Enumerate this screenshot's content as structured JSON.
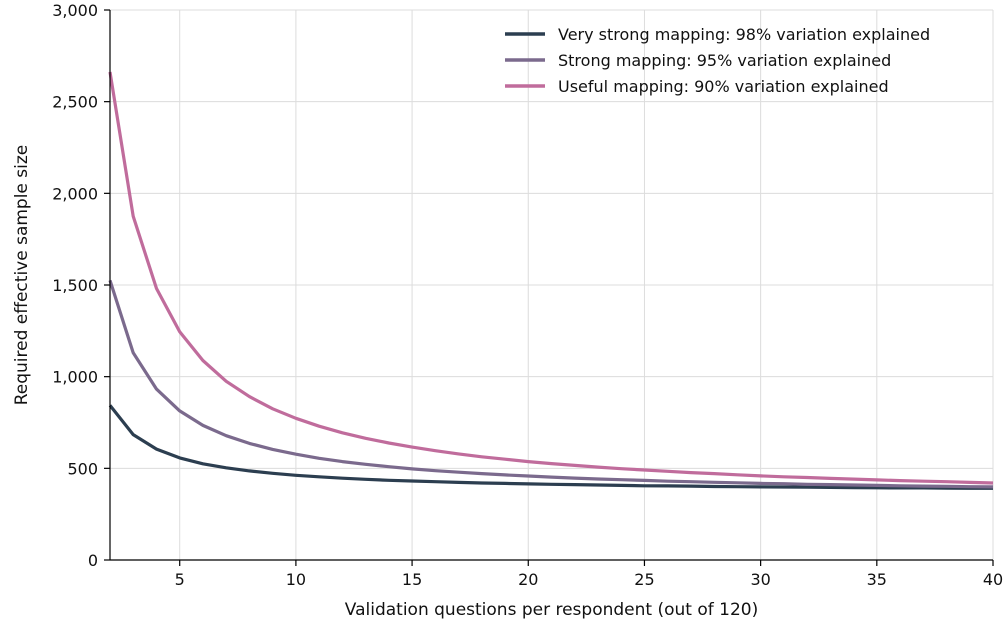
{
  "chart_data": {
    "type": "line",
    "title": "",
    "xlabel": "Validation questions per respondent (out of 120)",
    "ylabel": "Required effective sample size",
    "xlim": [
      2,
      40
    ],
    "ylim": [
      0,
      3000
    ],
    "xticks": [
      5,
      10,
      15,
      20,
      25,
      30,
      35,
      40
    ],
    "yticks": [
      0,
      500,
      1000,
      1500,
      2000,
      2500,
      3000
    ],
    "xtick_labels": [
      "5",
      "10",
      "15",
      "20",
      "25",
      "30",
      "35",
      "40"
    ],
    "ytick_labels": [
      "0",
      "500",
      "1,000",
      "1,500",
      "2,000",
      "2,500",
      "3,000"
    ],
    "grid": true,
    "legend_position": "top-right",
    "x": [
      2,
      3,
      4,
      5,
      6,
      7,
      8,
      9,
      10,
      11,
      12,
      13,
      14,
      15,
      16,
      17,
      18,
      19,
      20,
      21,
      22,
      23,
      24,
      25,
      26,
      27,
      28,
      29,
      30,
      31,
      32,
      33,
      34,
      35,
      36,
      37,
      38,
      39,
      40
    ],
    "series": [
      {
        "name": "Very strong mapping: 98% variation explained",
        "color": "#2c3e50",
        "values": [
          843,
          684,
          605,
          557,
          525,
          503,
          486,
          473,
          462,
          454,
          446,
          440,
          435,
          431,
          427,
          423,
          420,
          418,
          415,
          413,
          411,
          409,
          407,
          405,
          404,
          403,
          401,
          400,
          399,
          398,
          397,
          396,
          395,
          394,
          393,
          393,
          392,
          391,
          391
        ]
      },
      {
        "name": "Strong mapping: 95% variation explained",
        "color": "#7b6a8d",
        "values": [
          1525,
          1130,
          932,
          813,
          734,
          678,
          636,
          603,
          577,
          555,
          537,
          522,
          509,
          497,
          487,
          479,
          471,
          464,
          458,
          452,
          447,
          442,
          438,
          434,
          430,
          427,
          424,
          421,
          418,
          416,
          413,
          411,
          409,
          407,
          405,
          403,
          402,
          400,
          399
        ]
      },
      {
        "name": "Useful mapping: 90% variation explained",
        "color": "#c06c9c",
        "values": [
          2662,
          1875,
          1481,
          1245,
          1088,
          975,
          891,
          825,
          773,
          730,
          694,
          664,
          638,
          616,
          596,
          579,
          563,
          550,
          537,
          526,
          516,
          507,
          498,
          491,
          484,
          477,
          471,
          465,
          459,
          454,
          450,
          445,
          441,
          437,
          433,
          430,
          427,
          423,
          420
        ]
      }
    ]
  }
}
